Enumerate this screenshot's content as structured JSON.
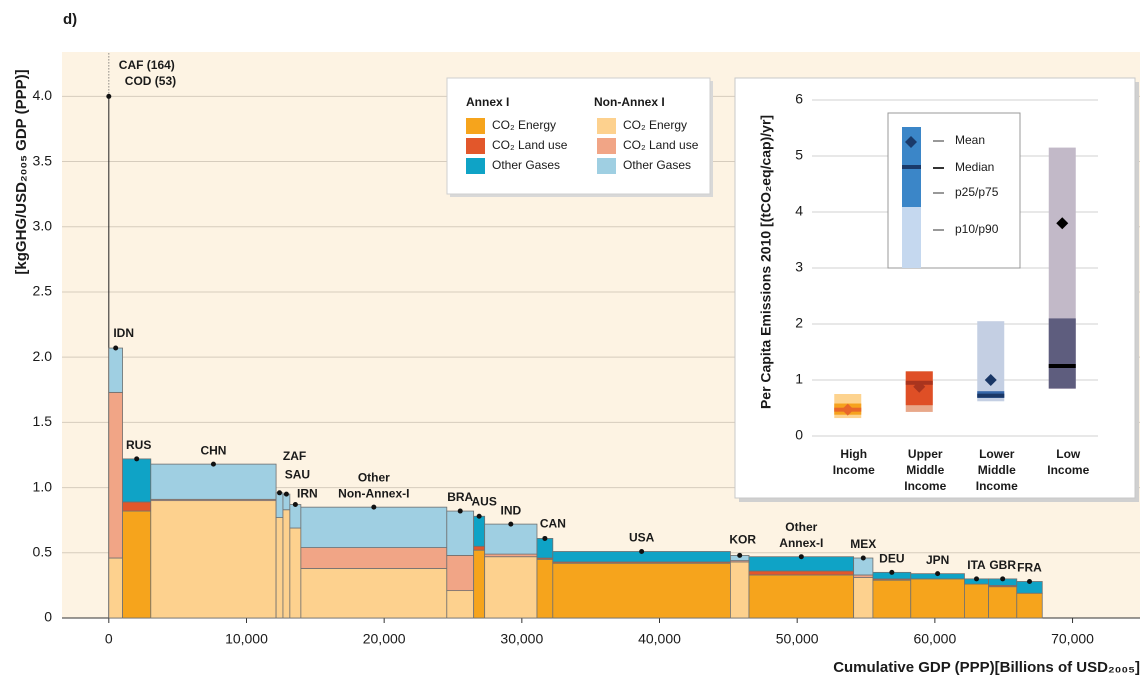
{
  "chart_data": [
    {
      "type": "marimekko",
      "panel_label": "d)",
      "ylabel": "[kgGHG/USD₂₀₀₅ GDP (PPP)]",
      "xlabel": "Cumulative GDP (PPP)[Billions of USD₂₀₀₅]",
      "xlim": [
        -3400,
        74900
      ],
      "ylim": [
        0,
        4.34
      ],
      "xticks": [
        0,
        {
          "value": 10000,
          "label": "10,000"
        },
        {
          "value": 20000,
          "label": "20,000"
        },
        {
          "value": 30000,
          "label": "30,000"
        },
        {
          "value": 40000,
          "label": "40,000"
        },
        {
          "value": 50000,
          "label": "50,000"
        },
        {
          "value": 60000,
          "label": "60,000"
        },
        {
          "value": 70000,
          "label": "70,000"
        }
      ],
      "yticks": [
        0,
        0.5,
        {
          "value": 1,
          "label": "1.0"
        },
        1.5,
        {
          "value": 2,
          "label": "2.0"
        },
        2.5,
        {
          "value": 3,
          "label": "3.0"
        },
        3.5,
        {
          "value": 4,
          "label": "4.0"
        }
      ],
      "grid": true,
      "categories": [
        "IDN",
        "RUS",
        "CHN",
        "ZAF",
        "SAU",
        "IRN",
        [
          "Other",
          "Non-Annex-I"
        ],
        "BRA",
        "AUS",
        "IND",
        "CAN",
        "USA",
        "KOR",
        [
          "Other",
          "Annex-I"
        ],
        "MEX",
        "DEU",
        "JPN",
        "ITA",
        "GBR",
        "FRA"
      ],
      "x_edges": [
        0,
        1000,
        3050,
        12150,
        12650,
        13150,
        13950,
        24550,
        26500,
        27300,
        31100,
        32250,
        45150,
        46500,
        54100,
        55500,
        58250,
        62150,
        63900,
        65950,
        67800
      ],
      "annex_i": [
        false,
        true,
        false,
        false,
        false,
        false,
        false,
        false,
        true,
        false,
        true,
        true,
        false,
        true,
        false,
        true,
        true,
        true,
        true,
        true
      ],
      "series": [
        {
          "name": "CO₂ Energy",
          "color": "#f6a41c",
          "color_non_annex": "#fdd18e",
          "values": [
            0.46,
            0.82,
            0.9,
            0.77,
            0.83,
            0.69,
            0.38,
            0.21,
            0.52,
            0.47,
            0.45,
            0.42,
            0.43,
            0.33,
            0.31,
            0.29,
            0.3,
            0.26,
            0.24,
            0.19
          ]
        },
        {
          "name": "CO₂ Land use",
          "color": "#e2572b",
          "color_non_annex": "#f1a586",
          "values": [
            1.27,
            0.07,
            0.01,
            0,
            0,
            0,
            0.16,
            0.27,
            0.03,
            0.02,
            0.01,
            0.01,
            0.01,
            0.03,
            0.02,
            0.01,
            0,
            0,
            0.01,
            0
          ]
        },
        {
          "name": "Other Gases",
          "color": "#0fa3c6",
          "color_non_annex": "#9fcfe2",
          "values": [
            0.34,
            0.33,
            0.27,
            0.19,
            0.12,
            0.18,
            0.31,
            0.34,
            0.23,
            0.23,
            0.15,
            0.08,
            0.04,
            0.11,
            0.13,
            0.05,
            0.04,
            0.04,
            0.05,
            0.09
          ]
        }
      ],
      "legend_titles": [
        "Annex I",
        "Non-Annex I"
      ],
      "annotation": {
        "labels": [
          "CAF (164)",
          "COD (53)"
        ],
        "x": 0,
        "y": 4
      }
    },
    {
      "type": "box",
      "ylabel": "Per Capita Emissions 2010 [(tCO₂eq/cap)/yr]",
      "ylim": [
        0,
        6
      ],
      "yticks": [
        0,
        1,
        2,
        3,
        4,
        5,
        6
      ],
      "grid": true,
      "categories": [
        [
          "High",
          "Income"
        ],
        [
          "Upper",
          "Middle",
          "Income"
        ],
        [
          "Lower",
          "Middle",
          "Income"
        ],
        [
          "Low",
          "Income"
        ]
      ],
      "boxes": [
        {
          "p10": 0.32,
          "p25": 0.38,
          "median": 0.47,
          "p75": 0.58,
          "p90": 0.75,
          "mean": 0.47,
          "color": "#f6a21e",
          "light_color": "#fdd38f",
          "accent_color": "#e8672a"
        },
        {
          "p10": 0.43,
          "p25": 0.55,
          "median": 0.95,
          "p75": 1.15,
          "p90": 1.16,
          "mean": 0.88,
          "color": "#df4f26",
          "light_color": "#e8a88a",
          "accent_color": "#a9341e"
        },
        {
          "p10": 0.62,
          "p25": 0.68,
          "median": 0.72,
          "p75": 0.8,
          "p90": 2.05,
          "mean": 1.0,
          "color": "#3566a8",
          "light_color": "#c4cfe3",
          "accent_color": "#1a3766"
        },
        {
          "p10": 0.84,
          "p25": 0.85,
          "median": 1.25,
          "p75": 2.1,
          "p90": 5.15,
          "mean": 3.8,
          "color": "#5e5d7e",
          "light_color": "#c2b9c8",
          "accent_color": "#000000"
        }
      ],
      "legend_labels": [
        "Mean",
        "Median",
        "p25/p75",
        "p10/p90"
      ]
    }
  ]
}
